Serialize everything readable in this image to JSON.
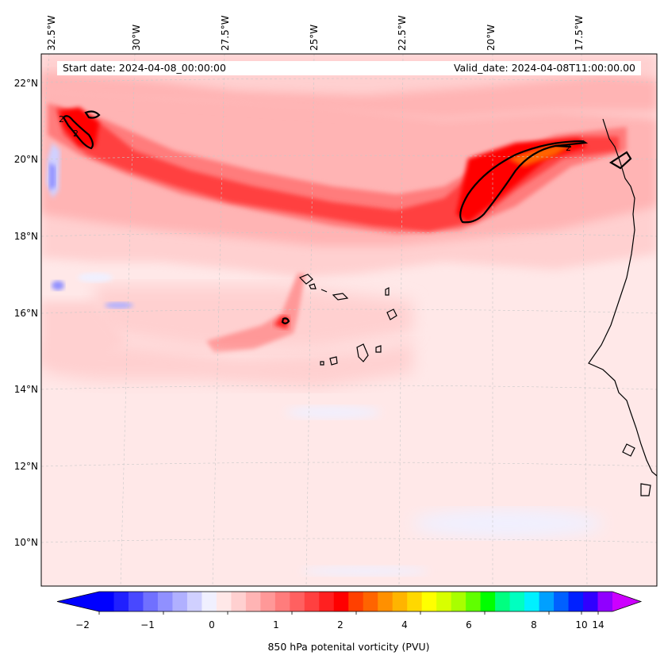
{
  "map": {
    "header": {
      "start_date": "Start date: 2024-04-08_00:00:00",
      "valid_date": "Valid_date: 2024-04-08T11:00:00.00"
    },
    "lon_labels": [
      "32.5°W",
      "30°W",
      "27.5°W",
      "25°W",
      "22.5°W",
      "20°W",
      "17.5°W"
    ],
    "lat_labels": [
      "22°N",
      "20°N",
      "18°N",
      "16°N",
      "14°N",
      "12°N",
      "10°N"
    ],
    "contour_label": "2",
    "colorbar": {
      "title": "850 hPa potenital vorticity (PVU)",
      "tick_labels": [
        "−2",
        "−1",
        "0",
        "1",
        "2",
        "4",
        "6",
        "8",
        "10",
        "14"
      ],
      "colors": [
        "#0000ff",
        "#2020ff",
        "#4848ff",
        "#7070ff",
        "#9090ff",
        "#b0b0ff",
        "#d0d0ff",
        "#f0f0ff",
        "#ffe8e8",
        "#ffd0d0",
        "#ffb4b4",
        "#ff9898",
        "#ff7c7c",
        "#ff6060",
        "#ff4040",
        "#ff2020",
        "#ff0000",
        "#ff4000",
        "#ff6400",
        "#ff9000",
        "#ffb400",
        "#ffd800",
        "#ffff00",
        "#d8ff00",
        "#a8ff00",
        "#60ff00",
        "#00ff00",
        "#00ff80",
        "#00ffc0",
        "#00f0ff",
        "#00a0ff",
        "#0060ff",
        "#0020ff",
        "#3000ff",
        "#9000ff"
      ],
      "under_color": "#0000ff",
      "over_color": "#cc00ff"
    }
  }
}
